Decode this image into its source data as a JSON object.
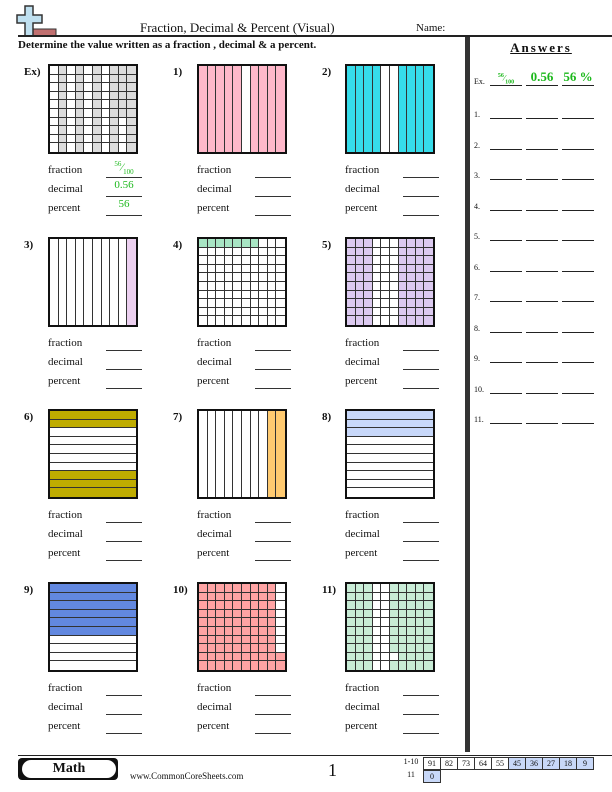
{
  "header": {
    "title": "Fraction, Decimal & Percent (Visual)",
    "name_label": "Name:",
    "instructions": "Determine the value written as a fraction , decimal & a percent.",
    "logo_icon": "plus-logo-icon"
  },
  "labels": {
    "fraction": "fraction",
    "decimal": "decimal",
    "percent": "percent"
  },
  "problems": [
    {
      "label": "Ex)",
      "rows": 10,
      "cols": 10,
      "color": "#dcdcdc",
      "mask": [
        "0101010111",
        "0101010111",
        "0101010111",
        "0101010111",
        "0101010111",
        "0101010111",
        "0101010101",
        "0101010101",
        "0101010101",
        "0101010101"
      ],
      "answers": {
        "fraction_num": "56",
        "fraction_den": "100",
        "decimal": "0.56",
        "percent": "56"
      }
    },
    {
      "label": "1)",
      "rows": 1,
      "cols": 10,
      "color": "#ffb8ca",
      "mask": [
        "1111101111"
      ]
    },
    {
      "label": "2)",
      "rows": 1,
      "cols": 10,
      "color": "#36dcea",
      "mask": [
        "1111001111"
      ]
    },
    {
      "label": "3)",
      "rows": 1,
      "cols": 10,
      "color": "#ecd0f0",
      "mask": [
        "0000000001"
      ]
    },
    {
      "label": "4)",
      "rows": 10,
      "cols": 10,
      "color": "#a8e6c4",
      "mask": [
        "1111111000",
        "0000000000",
        "0000000000",
        "0000000000",
        "0000000000",
        "0000000000",
        "0000000000",
        "0000000000",
        "0000000000",
        "0000000000"
      ]
    },
    {
      "label": "5)",
      "rows": 10,
      "cols": 10,
      "color": "#dccaf0",
      "mask": [
        "1110001111",
        "1110001111",
        "1110001111",
        "1110001111",
        "1110001111",
        "1110001111",
        "1110001111",
        "1110001111",
        "1110001111",
        "1110001111"
      ]
    },
    {
      "label": "6)",
      "rows": 10,
      "cols": 1,
      "color": "#bfac00",
      "mask": [
        "1",
        "1",
        "0",
        "0",
        "0",
        "0",
        "0",
        "1",
        "1",
        "1"
      ]
    },
    {
      "label": "7)",
      "rows": 1,
      "cols": 10,
      "color": "#ffca70",
      "mask": [
        "0000000011"
      ]
    },
    {
      "label": "8)",
      "rows": 10,
      "cols": 1,
      "color": "#c8d8fa",
      "mask": [
        "1",
        "1",
        "1",
        "0",
        "0",
        "0",
        "0",
        "0",
        "0",
        "0"
      ]
    },
    {
      "label": "9)",
      "rows": 10,
      "cols": 1,
      "color": "#6288e0",
      "mask": [
        "1",
        "1",
        "1",
        "1",
        "1",
        "1",
        "0",
        "0",
        "0",
        "0"
      ]
    },
    {
      "label": "10)",
      "rows": 10,
      "cols": 10,
      "color": "#ffa4a4",
      "mask": [
        "1111111110",
        "1111111110",
        "1111111110",
        "1111111110",
        "1111111110",
        "1111111110",
        "1111111110",
        "1111111110",
        "1111111111",
        "1111111111"
      ]
    },
    {
      "label": "11)",
      "rows": 10,
      "cols": 10,
      "color": "#c8ecd6",
      "mask": [
        "1110011111",
        "1110011111",
        "1110011111",
        "1110011111",
        "1110011111",
        "1110011111",
        "1110011111",
        "1110011111",
        "1110001111",
        "1110011111"
      ]
    }
  ],
  "answers_panel": {
    "title": "Answers",
    "example": {
      "label": "Ex.",
      "fraction_num": "56",
      "fraction_den": "100",
      "decimal": "0.56",
      "percent": "56 %"
    },
    "rows": [
      "1.",
      "2.",
      "3.",
      "4.",
      "5.",
      "6.",
      "7.",
      "8.",
      "9.",
      "10.",
      "11."
    ]
  },
  "footer": {
    "subject": "Math",
    "site": "www.CommonCoreSheets.com",
    "page": "1",
    "bank": [
      {
        "label": "1-10",
        "values": [
          "91",
          "82",
          "73",
          "64",
          "55",
          "45",
          "36",
          "27",
          "18",
          "9"
        ],
        "highlight": [
          false,
          false,
          false,
          false,
          false,
          true,
          true,
          true,
          true,
          true
        ]
      },
      {
        "label": "11",
        "values": [
          "0"
        ],
        "highlight": [
          true
        ]
      }
    ]
  },
  "colors": {
    "answer_green": "#1cb81c"
  }
}
